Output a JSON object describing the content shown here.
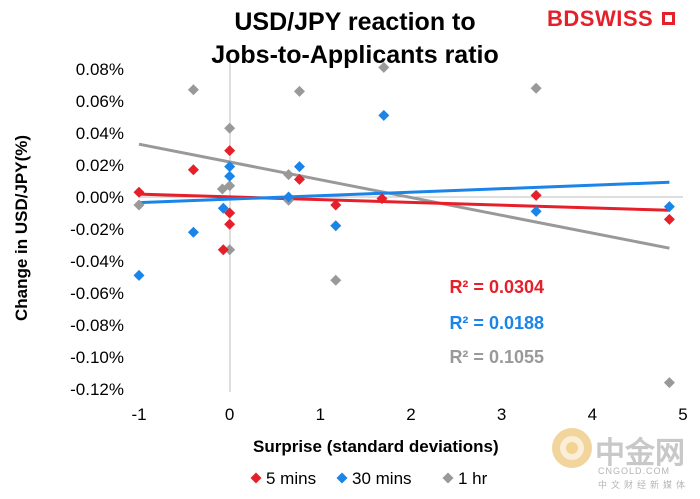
{
  "chart_data": {
    "type": "scatter",
    "title_line1": "USD/JPY reaction to",
    "title_line2": "Jobs-to-Applicants ratio",
    "xlabel": "Surprise (standard deviations)",
    "ylabel": "Change in USD/JPY(%)",
    "xlim": [
      -1,
      5
    ],
    "ylim": [
      -0.12,
      0.08
    ],
    "x_ticks": [
      "-1",
      "0",
      "1",
      "2",
      "3",
      "4",
      "5"
    ],
    "y_ticks": [
      "0.08%",
      "0.06%",
      "0.04%",
      "0.02%",
      "0.00%",
      "-0.02%",
      "-0.04%",
      "-0.06%",
      "-0.08%",
      "-0.10%",
      "-0.12%"
    ],
    "legend_position": "bottom",
    "series": [
      {
        "name": "5 mins",
        "color": "#e5202a",
        "r2": "R² = 0.0304",
        "trend": [
          [
            -1,
            0.0018
          ],
          [
            4.85,
            -0.0083
          ]
        ],
        "points": [
          [
            -1,
            0.003
          ],
          [
            -0.4,
            0.017
          ],
          [
            -0.07,
            -0.033
          ],
          [
            0,
            0.029
          ],
          [
            0,
            -0.01
          ],
          [
            0,
            -0.017
          ],
          [
            0.77,
            0.011
          ],
          [
            1.17,
            -0.005
          ],
          [
            1.68,
            -0.001
          ],
          [
            3.38,
            0.001
          ],
          [
            4.85,
            -0.014
          ]
        ]
      },
      {
        "name": "30 mins",
        "color": "#1b84e8",
        "r2": "R² = 0.0188",
        "trend": [
          [
            -1,
            -0.0035
          ],
          [
            4.85,
            0.0092
          ]
        ],
        "points": [
          [
            -1,
            -0.049
          ],
          [
            -0.4,
            -0.022
          ],
          [
            -0.07,
            -0.007
          ],
          [
            0,
            0.019
          ],
          [
            0,
            0.013
          ],
          [
            0.77,
            0.019
          ],
          [
            0.65,
            0
          ],
          [
            1.17,
            -0.018
          ],
          [
            1.7,
            0.051
          ],
          [
            3.38,
            -0.009
          ],
          [
            4.85,
            -0.006
          ]
        ]
      },
      {
        "name": "1 hr",
        "color": "#999999",
        "r2": "R² = 0.1055",
        "trend": [
          [
            -1,
            0.033
          ],
          [
            4.85,
            -0.032
          ]
        ],
        "points": [
          [
            -1,
            -0.005
          ],
          [
            -0.4,
            0.067
          ],
          [
            -0.08,
            0.005
          ],
          [
            0,
            0.043
          ],
          [
            0,
            0.007
          ],
          [
            0,
            -0.033
          ],
          [
            0.65,
            0.014
          ],
          [
            0.65,
            -0.002
          ],
          [
            0.77,
            0.066
          ],
          [
            1.17,
            -0.052
          ],
          [
            1.7,
            0.081
          ],
          [
            3.38,
            0.068
          ],
          [
            4.85,
            -0.116
          ]
        ]
      }
    ]
  },
  "brand": {
    "part1": "BD",
    "part2": "SWISS"
  },
  "watermark": {
    "main": "中金网",
    "sub": "CNGOLD.COM",
    "sub2": "中文财经新媒体"
  }
}
